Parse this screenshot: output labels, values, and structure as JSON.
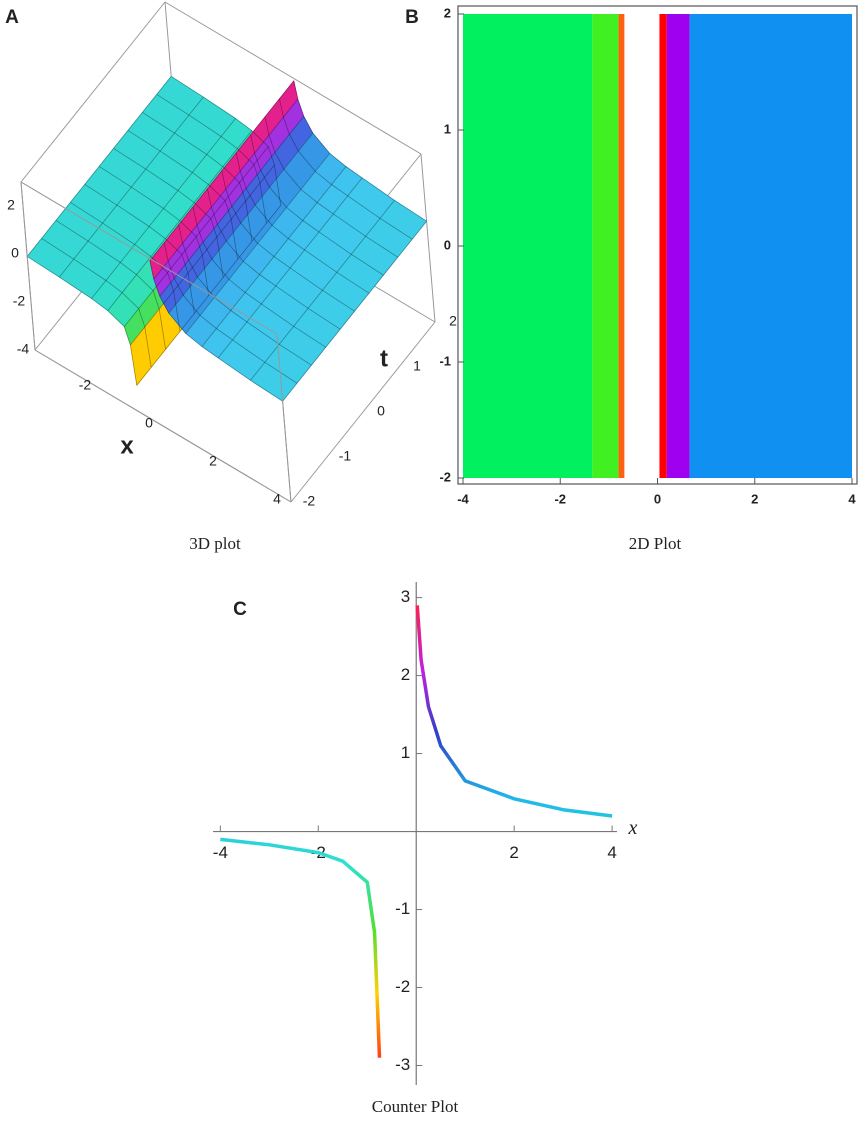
{
  "chart_data": [
    {
      "type": "surface3d",
      "panel": "A",
      "caption": "3D plot",
      "xlabel": "x",
      "ylabel": "t",
      "x": [
        -4,
        -3,
        -2,
        -1.5,
        -1,
        -0.85,
        -0.75,
        -0.4,
        0.02,
        0.1,
        0.25,
        0.5,
        1,
        1.5,
        2,
        3,
        4
      ],
      "values": [
        -0.1,
        -0.17,
        -0.27,
        -0.38,
        -0.65,
        -1.3,
        -2.9,
        null,
        2.9,
        2.2,
        1.6,
        1.1,
        0.65,
        0.5,
        0.42,
        0.28,
        0.2
      ],
      "colormap": [
        "#ff4010",
        "#ffd000",
        "#50e030",
        "#30e0c8",
        "#40c8f0",
        "#3070e0",
        "#c020e0",
        "#ff2050"
      ],
      "xlim": [
        -4,
        4
      ],
      "ylim": [
        -2,
        2
      ],
      "zlim": [
        -4,
        3
      ],
      "xticks": [
        -2,
        0,
        2,
        4
      ],
      "yticks": [
        -2,
        -1,
        0,
        1,
        2
      ],
      "zticks": [
        -4,
        -2,
        0,
        2
      ]
    },
    {
      "type": "density",
      "panel": "B",
      "caption": "2D Plot",
      "bins": [
        -4,
        -1.34,
        -0.8,
        -0.68,
        0.04,
        0.19,
        0.66,
        4
      ],
      "colors": [
        "#00f060",
        "#40f020",
        "#ff6010",
        "#ffffff",
        "#ff0000",
        "#a000f0",
        "#1090f0"
      ],
      "xlim": [
        -4,
        4
      ],
      "ylim": [
        -2,
        2
      ],
      "xticks": [
        -4,
        -2,
        0,
        2,
        4
      ],
      "yticks": [
        -2,
        -1,
        0,
        1,
        2
      ]
    },
    {
      "type": "line",
      "panel": "C",
      "caption": "Counter Plot",
      "xlabel": "x",
      "x": [
        -4,
        -3,
        -2,
        -1.5,
        -1,
        -0.85,
        -0.75,
        0.02,
        0.1,
        0.25,
        0.5,
        1,
        2,
        3,
        4
      ],
      "series": [
        {
          "values": [
            -0.1,
            -0.17,
            -0.27,
            -0.38,
            -0.65,
            -1.3,
            -2.9,
            null,
            null,
            null,
            null,
            null,
            null,
            null,
            null
          ]
        },
        {
          "values": [
            null,
            null,
            null,
            null,
            null,
            null,
            null,
            2.9,
            2.2,
            1.6,
            1.1,
            0.65,
            0.42,
            0.28,
            0.2
          ]
        }
      ],
      "colormap": [
        "#ff4010",
        "#ffd000",
        "#50e030",
        "#30e0d0",
        "#20b8e8",
        "#3040c8",
        "#c020e0",
        "#ff2050"
      ],
      "xlim": [
        -4.15,
        4.1
      ],
      "ylim": [
        -3.25,
        3.2
      ],
      "xticks": [
        -4,
        -2,
        2,
        4
      ],
      "yticks": [
        -3,
        -2,
        -1,
        1,
        2,
        3
      ]
    }
  ]
}
